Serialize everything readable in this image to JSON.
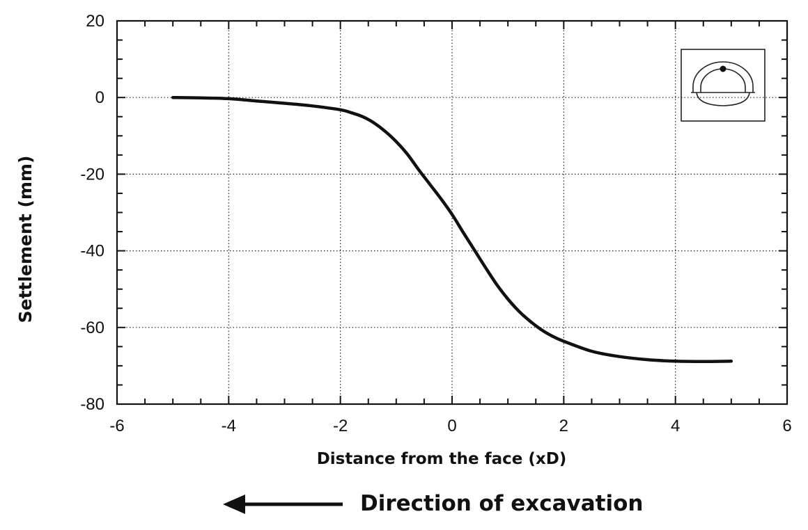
{
  "chart_data": {
    "type": "line",
    "xlabel": "Distance from the face (xD)",
    "ylabel": "Settlement (mm)",
    "xlim": [
      -6,
      6
    ],
    "ylim": [
      -80,
      20
    ],
    "xticks": [
      -6,
      -4,
      -2,
      0,
      2,
      4,
      6
    ],
    "yticks": [
      20,
      0,
      -20,
      -40,
      -60,
      -80
    ],
    "grid": true,
    "series": [
      {
        "x": [
          -5.0,
          -4.5,
          -4.0,
          -3.5,
          -3.0,
          -2.5,
          -2.0,
          -1.8,
          -1.6,
          -1.4,
          -1.2,
          -1.0,
          -0.8,
          -0.6,
          -0.4,
          -0.2,
          0.0,
          0.2,
          0.4,
          0.6,
          0.8,
          1.0,
          1.2,
          1.4,
          1.6,
          1.8,
          2.0,
          2.5,
          3.0,
          3.5,
          4.0,
          4.5,
          5.0
        ],
        "y": [
          0.0,
          -0.1,
          -0.3,
          -0.9,
          -1.5,
          -2.2,
          -3.2,
          -4.0,
          -5.0,
          -6.6,
          -8.8,
          -11.5,
          -14.8,
          -18.8,
          -22.6,
          -26.4,
          -30.5,
          -35.2,
          -39.8,
          -44.4,
          -48.8,
          -52.6,
          -55.8,
          -58.4,
          -60.6,
          -62.3,
          -63.6,
          -66.2,
          -67.6,
          -68.4,
          -68.8,
          -68.9,
          -68.8
        ]
      }
    ],
    "annotation": {
      "text": "Direction of excavation",
      "arrow": "left"
    },
    "inset_icon": "tunnel-cross-section-icon"
  }
}
